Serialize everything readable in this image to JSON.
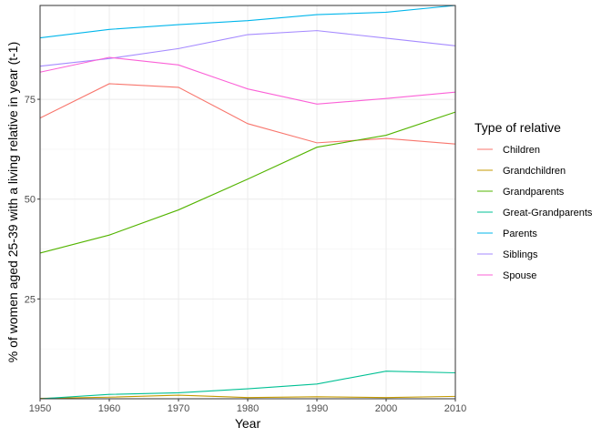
{
  "chart_data": {
    "type": "line",
    "title": "",
    "xlabel": "Year",
    "ylabel": "% of women aged 25-39 with a living relative in year (t-1)",
    "x": [
      1950,
      1960,
      1970,
      1980,
      1990,
      2000,
      2010
    ],
    "xlim": [
      1950,
      2010
    ],
    "ylim": [
      0,
      98.5
    ],
    "x_ticks": [
      1950,
      1960,
      1970,
      1980,
      1990,
      2000,
      2010
    ],
    "y_ticks": [
      25,
      50,
      75
    ],
    "grid": true,
    "legend": {
      "title": "Type of relative",
      "placement": "right"
    },
    "series": [
      {
        "name": "Children",
        "color": "#F8766D",
        "values": [
          70.3,
          78.9,
          78.0,
          68.9,
          64.1,
          65.2,
          63.8
        ]
      },
      {
        "name": "Grandchildren",
        "color": "#C49A00",
        "values": [
          0.1,
          0.4,
          0.9,
          0.3,
          0.5,
          0.3,
          0.6
        ]
      },
      {
        "name": "Grandparents",
        "color": "#53B400",
        "values": [
          36.5,
          41.0,
          47.3,
          55.0,
          63.0,
          66.0,
          71.8
        ]
      },
      {
        "name": "Great-Grandparents",
        "color": "#00C094",
        "values": [
          0.0,
          1.1,
          1.5,
          2.5,
          3.7,
          6.9,
          6.5
        ]
      },
      {
        "name": "Parents",
        "color": "#00B6EB",
        "values": [
          90.4,
          92.5,
          93.7,
          94.7,
          96.2,
          96.8,
          98.5
        ]
      },
      {
        "name": "Siblings",
        "color": "#A58AFF",
        "values": [
          83.3,
          85.2,
          87.7,
          91.2,
          92.2,
          90.3,
          88.4
        ]
      },
      {
        "name": "Spouse",
        "color": "#FB61D7",
        "values": [
          81.8,
          85.5,
          83.6,
          77.6,
          73.8,
          75.2,
          76.8
        ]
      }
    ]
  }
}
